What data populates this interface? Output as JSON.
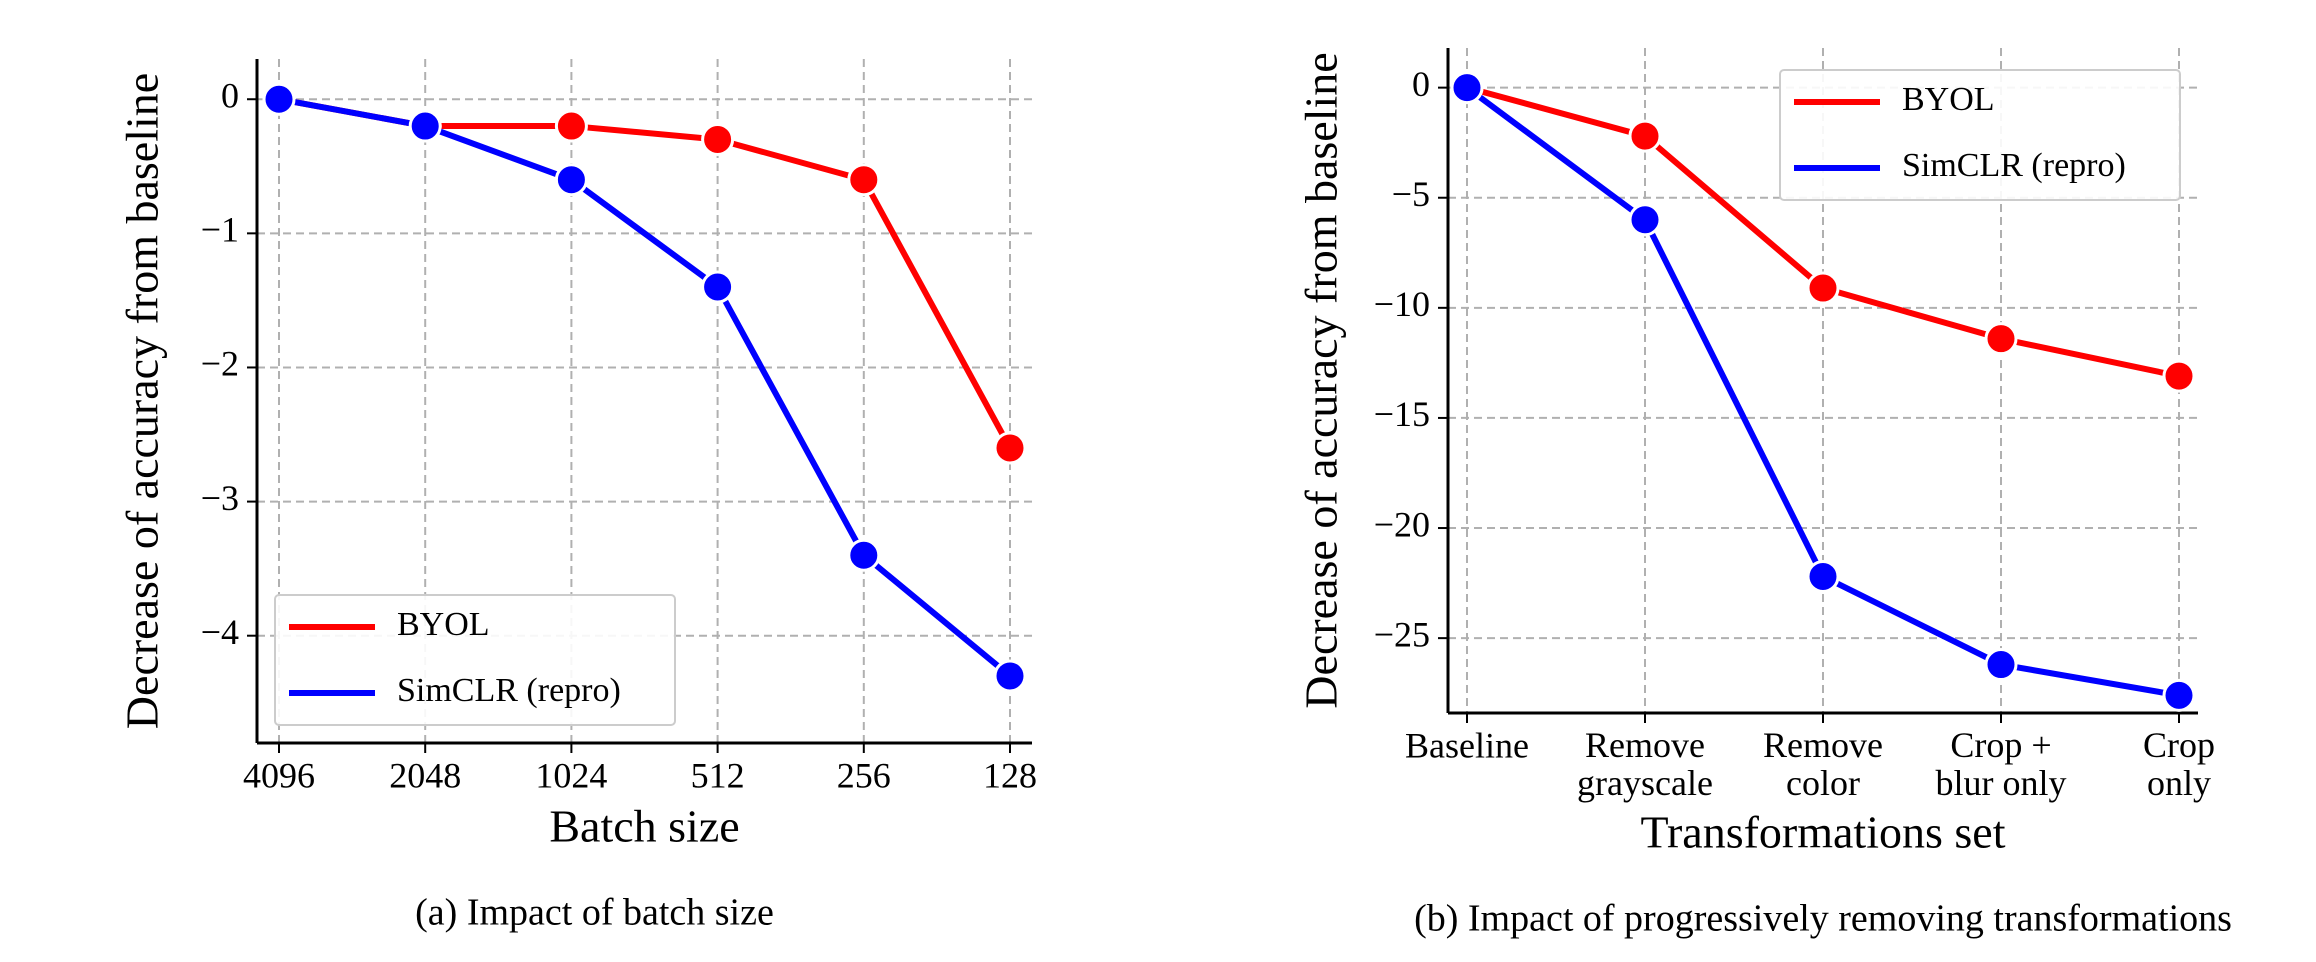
{
  "chart_data": [
    {
      "type": "line",
      "caption": "(a) Impact of batch size",
      "xlabel": "Batch size",
      "ylabel": "Decrease of accuracy from baseline",
      "categories": [
        "4096",
        "2048",
        "1024",
        "512",
        "256",
        "128"
      ],
      "series": [
        {
          "name": "BYOL",
          "color": "#ff0000",
          "values": [
            0,
            -0.2,
            -0.2,
            -0.3,
            -0.6,
            -2.6
          ]
        },
        {
          "name": "SimCLR (repro)",
          "color": "#0000ff",
          "values": [
            0,
            -0.2,
            -0.6,
            -1.4,
            -3.4,
            -4.3
          ]
        }
      ],
      "ylim": [
        -4.8,
        0.3
      ],
      "yticks": [
        0,
        {
          "value": -1,
          "label": "−1"
        },
        {
          "value": -2,
          "label": "−2"
        },
        {
          "value": -3,
          "label": "−3"
        },
        {
          "value": -4,
          "label": "−4"
        }
      ],
      "grid": true,
      "legend": "lower left"
    },
    {
      "type": "line",
      "caption": "(b) Impact of progressively removing transformations",
      "xlabel": "Transformations set",
      "ylabel": "Decrease of accuracy from baseline",
      "categories": [
        "Baseline",
        "Remove\ngrayscale",
        "Remove\ncolor",
        "Crop +\nblur only",
        "Crop\nonly"
      ],
      "series": [
        {
          "name": "BYOL",
          "color": "#ff0000",
          "values": [
            0,
            -2.2,
            -9.1,
            -11.4,
            -13.1
          ]
        },
        {
          "name": "SimCLR (repro)",
          "color": "#0000ff",
          "values": [
            0,
            -6,
            -22.2,
            -26.2,
            -27.6
          ]
        }
      ],
      "ylim": [
        -28.4,
        1.8
      ],
      "yticks": [
        0,
        {
          "value": -5,
          "label": "−5"
        },
        {
          "value": -10,
          "label": "−10"
        },
        {
          "value": -15,
          "label": "−15"
        },
        {
          "value": -20,
          "label": "−20"
        },
        {
          "value": -25,
          "label": "−25"
        }
      ],
      "grid": true,
      "legend": "upper right"
    }
  ]
}
